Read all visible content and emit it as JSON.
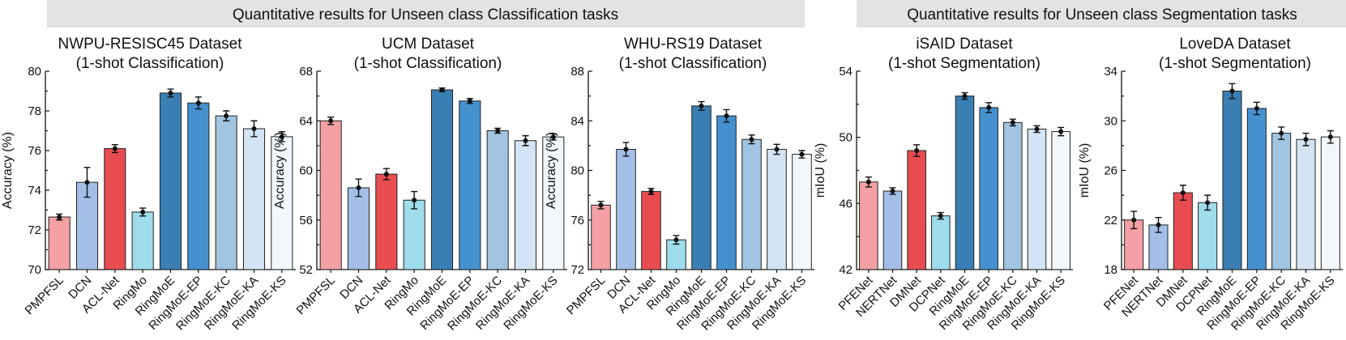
{
  "banners": {
    "classification": "Quantitative results for Unseen class Classification tasks",
    "segmentation": "Quantitative results for Unseen class Segmentation tasks"
  },
  "colors": {
    "pink": "#f4a0a4",
    "lightblue": "#a3bfe8",
    "red": "#e84c51",
    "cyan": "#9fdcec",
    "ringmoe": "#3a7fb3",
    "ringmoe_ep": "#4591d0",
    "ringmoe_kc": "#a1c4e1",
    "ringmoe_ka": "#d3e5f4",
    "ringmoe_ks": "#f2f7fc"
  },
  "chart_data": [
    {
      "type": "bar",
      "title": [
        "NWPU-RESISC45 Dataset",
        "(1-shot Classification)"
      ],
      "ylabel": "Accuracy (%)",
      "ylim": [
        70,
        80
      ],
      "yticks": [
        70,
        72,
        74,
        76,
        78,
        80
      ],
      "categories": [
        "PMPFSL",
        "DCN",
        "ACL-Net",
        "RingMo",
        "RingMoE",
        "RingMoE-EP",
        "RingMoE-KC",
        "RingMoE-KA",
        "RingMoE-KS"
      ],
      "values": [
        72.65,
        74.4,
        76.1,
        72.9,
        78.9,
        78.4,
        77.75,
        77.1,
        76.7
      ],
      "errors": [
        0.15,
        0.75,
        0.2,
        0.2,
        0.2,
        0.3,
        0.25,
        0.4,
        0.25
      ],
      "colors": [
        "#f4a0a4",
        "#a3bfe8",
        "#e84c51",
        "#9fdcec",
        "#3a7fb3",
        "#4591d0",
        "#a1c4e1",
        "#d3e5f4",
        "#f2f7fc"
      ]
    },
    {
      "type": "bar",
      "title": [
        "UCM Dataset",
        "(1-shot Classification)"
      ],
      "ylabel": "Accuracy (%)",
      "ylim": [
        52,
        68
      ],
      "yticks": [
        52,
        56,
        60,
        64,
        68
      ],
      "categories": [
        "PMPFSL",
        "DCN",
        "ACL-Net",
        "RingMo",
        "RingMoE",
        "RingMoE-EP",
        "RingMoE-KC",
        "RingMoE-KA",
        "RingMoE-KS"
      ],
      "values": [
        64.0,
        58.6,
        59.7,
        57.6,
        66.5,
        65.6,
        63.2,
        62.4,
        62.7
      ],
      "errors": [
        0.3,
        0.7,
        0.45,
        0.7,
        0.15,
        0.2,
        0.2,
        0.4,
        0.25
      ],
      "colors": [
        "#f4a0a4",
        "#a3bfe8",
        "#e84c51",
        "#9fdcec",
        "#3a7fb3",
        "#4591d0",
        "#a1c4e1",
        "#d3e5f4",
        "#f2f7fc"
      ]
    },
    {
      "type": "bar",
      "title": [
        "WHU-RS19 Dataset",
        "(1-shot Classification)"
      ],
      "ylabel": "Accuracy (%)",
      "ylim": [
        72,
        88
      ],
      "yticks": [
        72,
        76,
        80,
        84,
        88
      ],
      "categories": [
        "PMPFSL",
        "DCN",
        "ACL-Net",
        "RingMo",
        "RingMoE",
        "RingMoE-EP",
        "RingMoE-KC",
        "RingMoE-KA",
        "RingMoE-KS"
      ],
      "values": [
        77.2,
        81.7,
        78.3,
        74.4,
        85.2,
        84.4,
        82.5,
        81.7,
        81.3
      ],
      "errors": [
        0.3,
        0.55,
        0.25,
        0.35,
        0.35,
        0.5,
        0.35,
        0.4,
        0.3
      ],
      "colors": [
        "#f4a0a4",
        "#a3bfe8",
        "#e84c51",
        "#9fdcec",
        "#3a7fb3",
        "#4591d0",
        "#a1c4e1",
        "#d3e5f4",
        "#f2f7fc"
      ]
    },
    {
      "type": "bar",
      "title": [
        "iSAID Dataset",
        "(1-shot Segmentation)"
      ],
      "ylabel": "mIoU (%)",
      "ylim": [
        42,
        54
      ],
      "yticks": [
        42,
        46,
        50,
        54
      ],
      "categories": [
        "PFENet",
        "NERTNet",
        "DMNet",
        "DCPNet",
        "RingMoE",
        "RingMoE-EP",
        "RingMoE-KC",
        "RingMoE-KA",
        "RingMoE-KS"
      ],
      "values": [
        47.3,
        46.75,
        49.2,
        45.25,
        52.5,
        51.8,
        50.9,
        50.5,
        50.35
      ],
      "errors": [
        0.3,
        0.2,
        0.35,
        0.2,
        0.2,
        0.3,
        0.2,
        0.2,
        0.25
      ],
      "colors": [
        "#f4a0a4",
        "#a3bfe8",
        "#e84c51",
        "#9fdcec",
        "#3a7fb3",
        "#4591d0",
        "#a1c4e1",
        "#d3e5f4",
        "#f2f7fc"
      ]
    },
    {
      "type": "bar",
      "title": [
        "LoveDA Dataset",
        "(1-shot Segmentation)"
      ],
      "ylabel": "mIoU (%)",
      "ylim": [
        18,
        34
      ],
      "yticks": [
        18,
        22,
        26,
        30,
        34
      ],
      "categories": [
        "PFENet",
        "NERTNet",
        "DMNet",
        "DCPNet",
        "RingMoE",
        "RingMoE-EP",
        "RingMoE-KC",
        "RingMoE-KA",
        "RingMoE-KS"
      ],
      "values": [
        22.0,
        21.6,
        24.2,
        23.4,
        32.4,
        31.0,
        29.0,
        28.5,
        28.7
      ],
      "errors": [
        0.7,
        0.6,
        0.6,
        0.6,
        0.6,
        0.5,
        0.5,
        0.5,
        0.5
      ],
      "colors": [
        "#f4a0a4",
        "#a3bfe8",
        "#e84c51",
        "#9fdcec",
        "#3a7fb3",
        "#4591d0",
        "#a1c4e1",
        "#d3e5f4",
        "#f2f7fc"
      ]
    }
  ]
}
